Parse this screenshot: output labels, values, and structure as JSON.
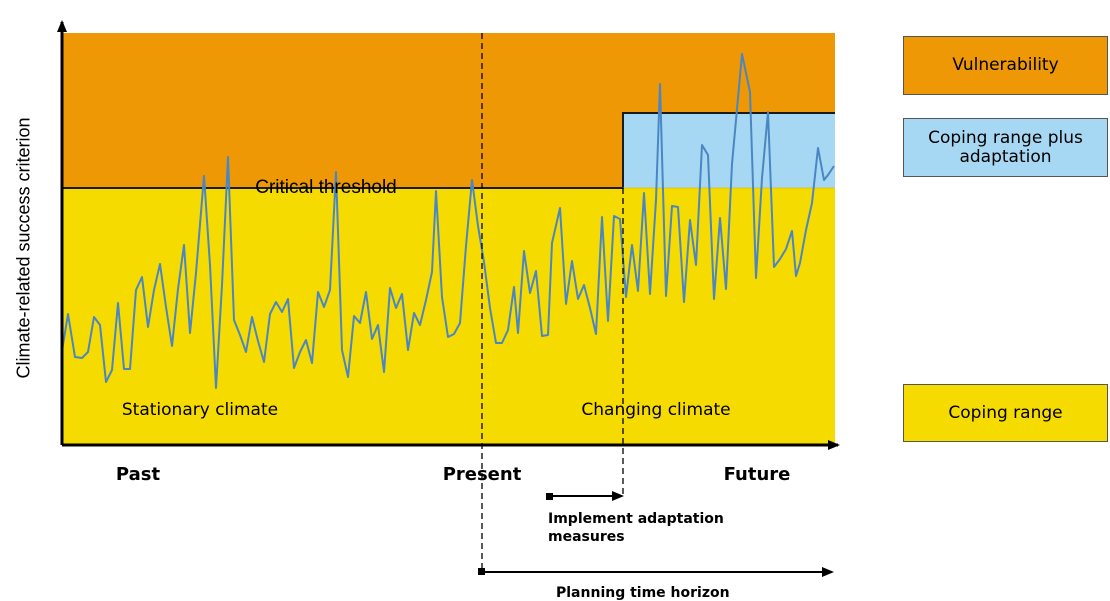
{
  "y_axis_label": "Climate-related success criterion",
  "zones": {
    "critical_threshold": "Critical threshold",
    "stationary": "Stationary climate",
    "changing": "Changing climate"
  },
  "time_labels": {
    "past": "Past",
    "present": "Present",
    "future": "Future"
  },
  "arrows": {
    "adaptation": "Implement adaptation measures",
    "horizon": "Planning time horizon"
  },
  "legend": [
    {
      "label": "Vulnerability",
      "color": "#ed9804"
    },
    {
      "label": "Coping range plus adaptation",
      "color": "#a7d8f3"
    },
    {
      "label": "Coping range",
      "color": "#f5db00"
    }
  ],
  "colors": {
    "vulnerability": "#ed9804",
    "coping": "#f5db00",
    "adaptation": "#a7d8f3",
    "series_line": "#4a86c4"
  },
  "series": [
    [
      62,
      351
    ],
    [
      68,
      314
    ],
    [
      75,
      357
    ],
    [
      82,
      358
    ],
    [
      88,
      352
    ],
    [
      94,
      317
    ],
    [
      100,
      325
    ],
    [
      106,
      382
    ],
    [
      112,
      370
    ],
    [
      118,
      303
    ],
    [
      124,
      369
    ],
    [
      130,
      369
    ],
    [
      136,
      290
    ],
    [
      142,
      277
    ],
    [
      148,
      327
    ],
    [
      154,
      290
    ],
    [
      160,
      264
    ],
    [
      166,
      307
    ],
    [
      172,
      346
    ],
    [
      178,
      289
    ],
    [
      184,
      245
    ],
    [
      190,
      333
    ],
    [
      196,
      273
    ],
    [
      204,
      176
    ],
    [
      210,
      265
    ],
    [
      216,
      388
    ],
    [
      222,
      285
    ],
    [
      228,
      157
    ],
    [
      234,
      320
    ],
    [
      240,
      335
    ],
    [
      246,
      352
    ],
    [
      252,
      317
    ],
    [
      258,
      341
    ],
    [
      264,
      362
    ],
    [
      270,
      314
    ],
    [
      276,
      302
    ],
    [
      282,
      312
    ],
    [
      288,
      299
    ],
    [
      294,
      368
    ],
    [
      300,
      352
    ],
    [
      306,
      340
    ],
    [
      312,
      363
    ],
    [
      318,
      292
    ],
    [
      324,
      307
    ],
    [
      330,
      290
    ],
    [
      336,
      172
    ],
    [
      342,
      350
    ],
    [
      348,
      377
    ],
    [
      354,
      316
    ],
    [
      360,
      323
    ],
    [
      366,
      292
    ],
    [
      372,
      339
    ],
    [
      378,
      325
    ],
    [
      384,
      372
    ],
    [
      390,
      288
    ],
    [
      396,
      308
    ],
    [
      402,
      294
    ],
    [
      408,
      350
    ],
    [
      414,
      313
    ],
    [
      420,
      325
    ],
    [
      426,
      300
    ],
    [
      432,
      272
    ],
    [
      436,
      191
    ],
    [
      442,
      297
    ],
    [
      448,
      337
    ],
    [
      454,
      334
    ],
    [
      460,
      323
    ],
    [
      466,
      246
    ],
    [
      472,
      180
    ],
    [
      478,
      226
    ],
    [
      484,
      262
    ],
    [
      490,
      308
    ],
    [
      496,
      343
    ],
    [
      502,
      343
    ],
    [
      508,
      330
    ],
    [
      514,
      287
    ],
    [
      518,
      333
    ],
    [
      524,
      251
    ],
    [
      530,
      293
    ],
    [
      536,
      271
    ],
    [
      542,
      336
    ],
    [
      548,
      335
    ],
    [
      552,
      243
    ],
    [
      560,
      208
    ],
    [
      566,
      304
    ],
    [
      572,
      261
    ],
    [
      578,
      299
    ],
    [
      584,
      285
    ],
    [
      590,
      308
    ],
    [
      596,
      334
    ],
    [
      602,
      217
    ],
    [
      608,
      321
    ],
    [
      614,
      216
    ],
    [
      620,
      219
    ],
    [
      626,
      297
    ],
    [
      632,
      245
    ],
    [
      638,
      291
    ],
    [
      644,
      193
    ],
    [
      650,
      294
    ],
    [
      656,
      200
    ],
    [
      660,
      84
    ],
    [
      666,
      296
    ],
    [
      672,
      206
    ],
    [
      678,
      207
    ],
    [
      684,
      302
    ],
    [
      690,
      220
    ],
    [
      696,
      265
    ],
    [
      702,
      145
    ],
    [
      708,
      155
    ],
    [
      714,
      299
    ],
    [
      720,
      218
    ],
    [
      726,
      289
    ],
    [
      732,
      164
    ],
    [
      742,
      54
    ],
    [
      750,
      92
    ],
    [
      756,
      278
    ],
    [
      762,
      178
    ],
    [
      768,
      112
    ],
    [
      774,
      267
    ],
    [
      780,
      259
    ],
    [
      786,
      249
    ],
    [
      792,
      231
    ],
    [
      796,
      276
    ],
    [
      800,
      263
    ],
    [
      806,
      230
    ],
    [
      812,
      203
    ],
    [
      818,
      148
    ],
    [
      824,
      180
    ],
    [
      828,
      175
    ],
    [
      834,
      166
    ]
  ]
}
